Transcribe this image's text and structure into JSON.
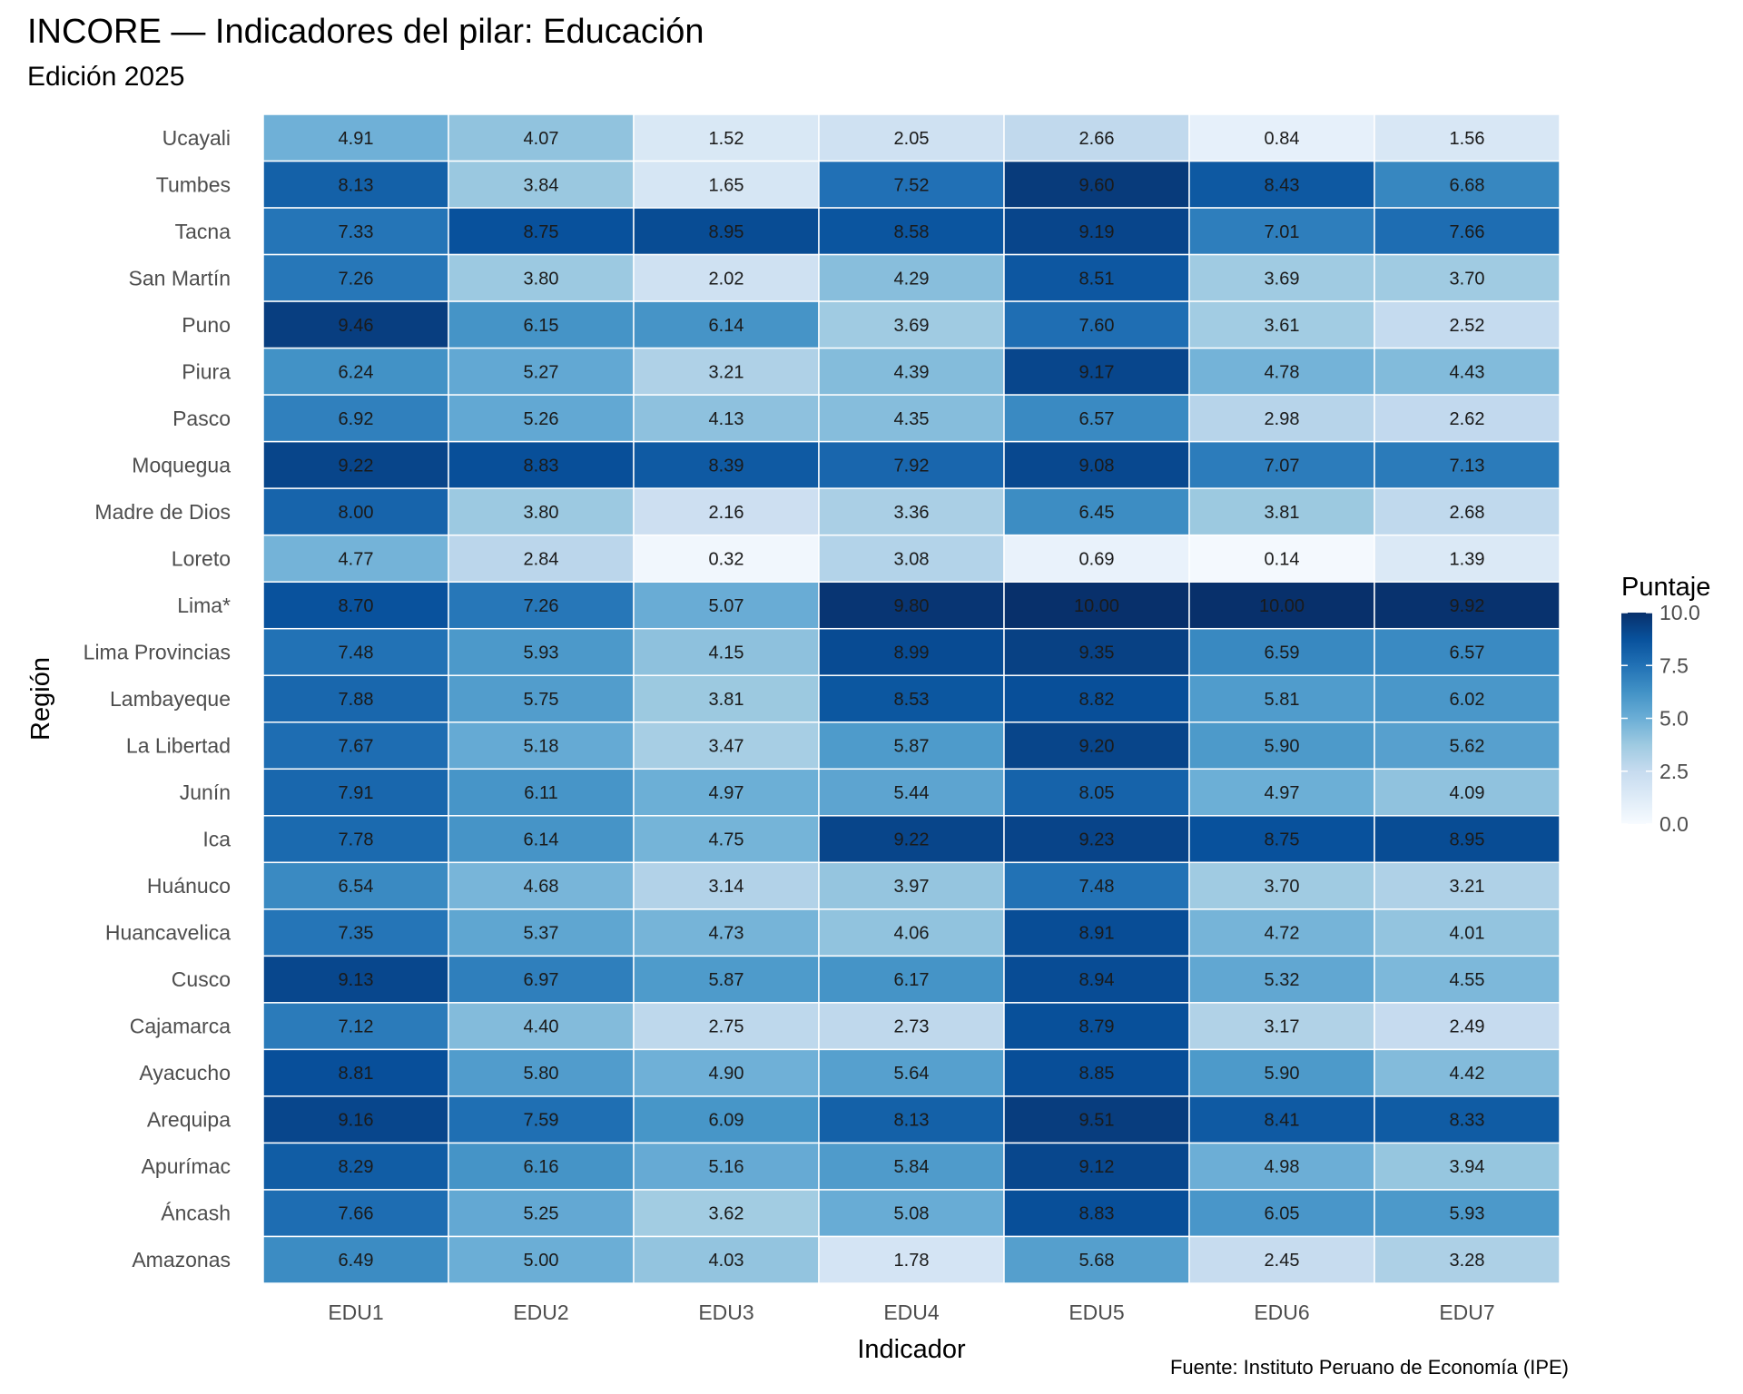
{
  "chart_data": {
    "type": "heatmap",
    "title": "INCORE — Indicadores del pilar: Educación",
    "subtitle": "Edición 2025",
    "caption": "Fuente: Instituto Peruano de Economía (IPE)",
    "xlabel": "Indicador",
    "ylabel": "Región",
    "x_categories": [
      "EDU1",
      "EDU2",
      "EDU3",
      "EDU4",
      "EDU5",
      "EDU6",
      "EDU7"
    ],
    "y_categories": [
      "Ucayali",
      "Tumbes",
      "Tacna",
      "San Martín",
      "Puno",
      "Piura",
      "Pasco",
      "Moquegua",
      "Madre de Dios",
      "Loreto",
      "Lima*",
      "Lima Provincias",
      "Lambayeque",
      "La Libertad",
      "Junín",
      "Ica",
      "Huánuco",
      "Huancavelica",
      "Cusco",
      "Cajamarca",
      "Ayacucho",
      "Arequipa",
      "Apurímac",
      "Áncash",
      "Amazonas"
    ],
    "values": [
      [
        4.91,
        4.07,
        1.52,
        2.05,
        2.66,
        0.84,
        1.56
      ],
      [
        8.13,
        3.84,
        1.65,
        7.52,
        9.6,
        8.43,
        6.68
      ],
      [
        7.33,
        8.75,
        8.95,
        8.58,
        9.19,
        7.01,
        7.66
      ],
      [
        7.26,
        3.8,
        2.02,
        4.29,
        8.51,
        3.69,
        3.7
      ],
      [
        9.46,
        6.15,
        6.14,
        3.69,
        7.6,
        3.61,
        2.52
      ],
      [
        6.24,
        5.27,
        3.21,
        4.39,
        9.17,
        4.78,
        4.43
      ],
      [
        6.92,
        5.26,
        4.13,
        4.35,
        6.57,
        2.98,
        2.62
      ],
      [
        9.22,
        8.83,
        8.39,
        7.92,
        9.08,
        7.07,
        7.13
      ],
      [
        8.0,
        3.8,
        2.16,
        3.36,
        6.45,
        3.81,
        2.68
      ],
      [
        4.77,
        2.84,
        0.32,
        3.08,
        0.69,
        0.14,
        1.39
      ],
      [
        8.7,
        7.26,
        5.07,
        9.8,
        10.0,
        10.0,
        9.92
      ],
      [
        7.48,
        5.93,
        4.15,
        8.99,
        9.35,
        6.59,
        6.57
      ],
      [
        7.88,
        5.75,
        3.81,
        8.53,
        8.82,
        5.81,
        6.02
      ],
      [
        7.67,
        5.18,
        3.47,
        5.87,
        9.2,
        5.9,
        5.62
      ],
      [
        7.91,
        6.11,
        4.97,
        5.44,
        8.05,
        4.97,
        4.09
      ],
      [
        7.78,
        6.14,
        4.75,
        9.22,
        9.23,
        8.75,
        8.95
      ],
      [
        6.54,
        4.68,
        3.14,
        3.97,
        7.48,
        3.7,
        3.21
      ],
      [
        7.35,
        5.37,
        4.73,
        4.06,
        8.91,
        4.72,
        4.01
      ],
      [
        9.13,
        6.97,
        5.87,
        6.17,
        8.94,
        5.32,
        4.55
      ],
      [
        7.12,
        4.4,
        2.75,
        2.73,
        8.79,
        3.17,
        2.49
      ],
      [
        8.81,
        5.8,
        4.9,
        5.64,
        8.85,
        5.9,
        4.42
      ],
      [
        9.16,
        7.59,
        6.09,
        8.13,
        9.51,
        8.41,
        8.33
      ],
      [
        8.29,
        6.16,
        5.16,
        5.84,
        9.12,
        4.98,
        3.94
      ],
      [
        7.66,
        5.25,
        3.62,
        5.08,
        8.83,
        6.05,
        5.93
      ],
      [
        6.49,
        5.0,
        4.03,
        1.78,
        5.68,
        2.45,
        3.28
      ]
    ],
    "legend": {
      "title": "Puntaje",
      "placement": "right",
      "range": [
        0,
        10
      ],
      "ticks": [
        "0.0",
        "2.5",
        "5.0",
        "7.5",
        "10.0"
      ]
    },
    "color_scale": [
      "#f7fbff",
      "#deebf7",
      "#c6dbef",
      "#9ecae1",
      "#6baed6",
      "#4292c6",
      "#2171b5",
      "#08519c",
      "#08306b"
    ],
    "cell_border_color": "#ffffff",
    "grid": false
  }
}
